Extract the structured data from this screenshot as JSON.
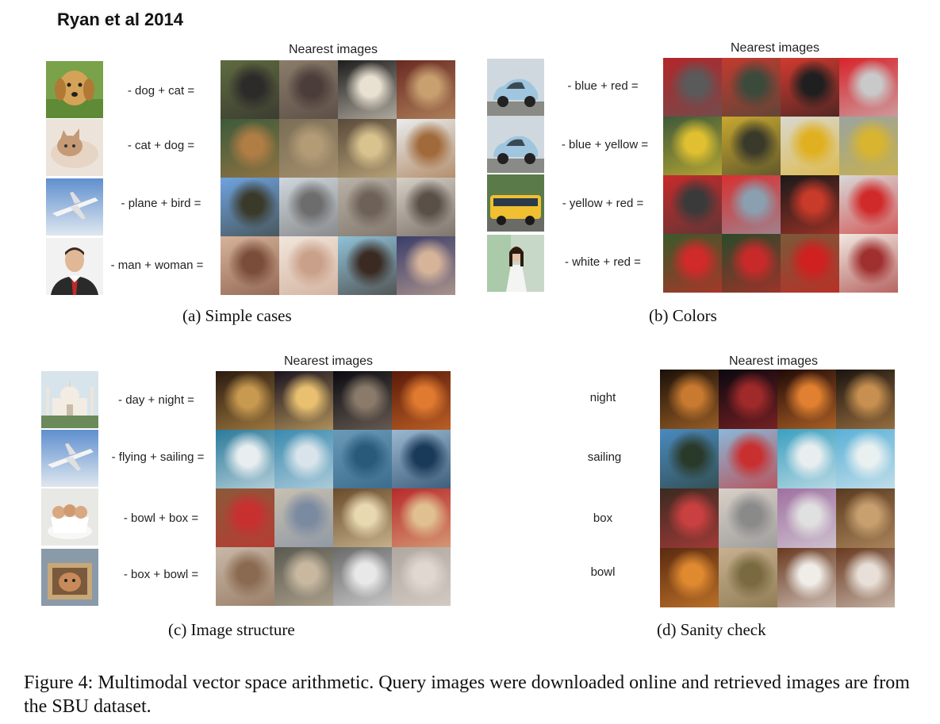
{
  "heading": "Ryan et al 2014",
  "nearest_label": "Nearest images",
  "panels": [
    {
      "caption": "(a) Simple cases",
      "rows": [
        {
          "equation": "- dog + cat =",
          "query_icon": "golden-retriever-photo",
          "query_colors": [
            "#d4a357",
            "#7aa24a"
          ],
          "results": [
            [
              "#5f6b40",
              "#2d2a2a"
            ],
            [
              "#8a7d6a",
              "#4b3d3a"
            ],
            [
              "#1d1d1d",
              "#e8e0d0"
            ],
            [
              "#6a2a22",
              "#c8a070"
            ]
          ]
        },
        {
          "equation": "- cat + dog =",
          "query_icon": "kitten-photo",
          "query_colors": [
            "#e6d5c4",
            "#c59a76"
          ],
          "results": [
            [
              "#3c5a3a",
              "#b07d45"
            ],
            [
              "#7a6e56",
              "#b39b76"
            ],
            [
              "#5a4a3a",
              "#d8c28e"
            ],
            [
              "#e8ecee",
              "#a06a3a"
            ]
          ]
        },
        {
          "equation": "- plane + bird =",
          "query_icon": "airplane-photo",
          "query_colors": [
            "#7fa8d8",
            "#dfe7ef"
          ],
          "results": [
            [
              "#6ea3e0",
              "#3a3a2a"
            ],
            [
              "#cfd7dd",
              "#6d6d6d"
            ],
            [
              "#b9b2a6",
              "#6e6258"
            ],
            [
              "#d6cfc4",
              "#5a5048"
            ]
          ]
        },
        {
          "equation": "- man + woman =",
          "query_icon": "businessman-photo",
          "query_colors": [
            "#f2f2f2",
            "#2a2a2a"
          ],
          "results": [
            [
              "#d6b39a",
              "#7a4d3a"
            ],
            [
              "#f1e6dc",
              "#c9a089"
            ],
            [
              "#8fc2d8",
              "#3a2a22"
            ],
            [
              "#3a3d6a",
              "#d6b49a"
            ]
          ]
        }
      ]
    },
    {
      "caption": "(b) Colors",
      "rows": [
        {
          "equation": "- blue + red =",
          "query_icon": "blue-car-photo",
          "query_colors": [
            "#9fc6de",
            "#cfd8de"
          ],
          "results": [
            [
              "#b3262a",
              "#5a5a5a"
            ],
            [
              "#c23a2e",
              "#3c4a3c"
            ],
            [
              "#d23a30",
              "#1f1f1f"
            ],
            [
              "#d8232a",
              "#c9c9c9"
            ]
          ]
        },
        {
          "equation": "- blue + yellow =",
          "query_icon": "blue-car-photo",
          "query_colors": [
            "#9fc6de",
            "#cfd8de"
          ],
          "results": [
            [
              "#3d5a3a",
              "#e0c030"
            ],
            [
              "#c8a830",
              "#3a3a2a"
            ],
            [
              "#d8d8d0",
              "#e0b020"
            ],
            [
              "#9aa4a0",
              "#d8b430"
            ]
          ]
        },
        {
          "equation": "- yellow + red =",
          "query_icon": "school-bus-photo",
          "query_colors": [
            "#f0c030",
            "#4a6a3a"
          ],
          "results": [
            [
              "#c82a2a",
              "#3a3a3a"
            ],
            [
              "#d83030",
              "#8aa0b0"
            ],
            [
              "#1a1a1a",
              "#c83a2a"
            ],
            [
              "#d8d8d8",
              "#d02a2a"
            ]
          ]
        },
        {
          "equation": "- white + red =",
          "query_icon": "woman-white-dress-photo",
          "query_colors": [
            "#eef2ee",
            "#c8d8c8"
          ],
          "results": [
            [
              "#3a5a2a",
              "#d02a2a"
            ],
            [
              "#2a4a2a",
              "#c82a2a"
            ],
            [
              "#7a5a3a",
              "#d02020"
            ],
            [
              "#f0e8e0",
              "#a03030"
            ]
          ]
        }
      ]
    },
    {
      "caption": "(c) Image structure",
      "rows": [
        {
          "equation": "- day + night =",
          "query_icon": "taj-mahal-photo",
          "query_colors": [
            "#d8e4ec",
            "#6a8a5a"
          ],
          "results": [
            [
              "#2a1a10",
              "#c89a50"
            ],
            [
              "#1a1420",
              "#e8c070"
            ],
            [
              "#0a0a10",
              "#8a7a6a"
            ],
            [
              "#5a1a0a",
              "#e07a30"
            ]
          ]
        },
        {
          "equation": "- flying + sailing =",
          "query_icon": "airplane-photo",
          "query_colors": [
            "#7fa8d8",
            "#dfe7ef"
          ],
          "results": [
            [
              "#2a7a9a",
              "#e8eef0"
            ],
            [
              "#3a8ab0",
              "#d8e4ea"
            ],
            [
              "#6a9ab8",
              "#2a5a7a"
            ],
            [
              "#9ab8d0",
              "#1a3a5a"
            ]
          ]
        },
        {
          "equation": "- bowl + box =",
          "query_icon": "kittens-in-cups-photo",
          "query_colors": [
            "#e8e8e4",
            "#d8a880"
          ],
          "results": [
            [
              "#8a5a3a",
              "#c83030"
            ],
            [
              "#c8c0b0",
              "#7a8aa0"
            ],
            [
              "#6a4a2a",
              "#e8d8b0"
            ],
            [
              "#b82a2a",
              "#e0c090"
            ]
          ]
        },
        {
          "equation": "- box + bowl =",
          "query_icon": "kitten-in-box-photo",
          "query_colors": [
            "#8a9aa8",
            "#c88a5a"
          ],
          "results": [
            [
              "#c8b8a8",
              "#8a6a50"
            ],
            [
              "#5a5a50",
              "#c8b8a0"
            ],
            [
              "#6a6a6a",
              "#e8e8e8"
            ],
            [
              "#b0a8a0",
              "#e0d8d0"
            ]
          ]
        }
      ]
    },
    {
      "caption": "(d) Sanity check",
      "rows": [
        {
          "equation": "night",
          "results": [
            [
              "#1a1008",
              "#c87a30"
            ],
            [
              "#0a0810",
              "#a02a2a"
            ],
            [
              "#200a08",
              "#e08030"
            ],
            [
              "#1a1410",
              "#c89050"
            ]
          ]
        },
        {
          "equation": "sailing",
          "results": [
            [
              "#4a8ac0",
              "#2a3a2a"
            ],
            [
              "#8ab8d8",
              "#c83030"
            ],
            [
              "#3aa0c0",
              "#e8eef0"
            ],
            [
              "#5ab0d8",
              "#e8f0f0"
            ]
          ]
        },
        {
          "equation": "box",
          "results": [
            [
              "#3a2a20",
              "#c84040"
            ],
            [
              "#d8d0c8",
              "#8a8a8a"
            ],
            [
              "#a070a0",
              "#e0e0e0"
            ],
            [
              "#5a3a20",
              "#c8a070"
            ]
          ]
        },
        {
          "equation": "bowl",
          "results": [
            [
              "#5a2a10",
              "#e08a30"
            ],
            [
              "#c8b090",
              "#7a6a40"
            ],
            [
              "#6a3a20",
              "#f0ece8"
            ],
            [
              "#6a3a20",
              "#e8e0d8"
            ]
          ]
        }
      ]
    }
  ],
  "figure_caption": "Figure 4: Multimodal vector space arithmetic. Query images were downloaded online and retrieved images are from the SBU dataset."
}
